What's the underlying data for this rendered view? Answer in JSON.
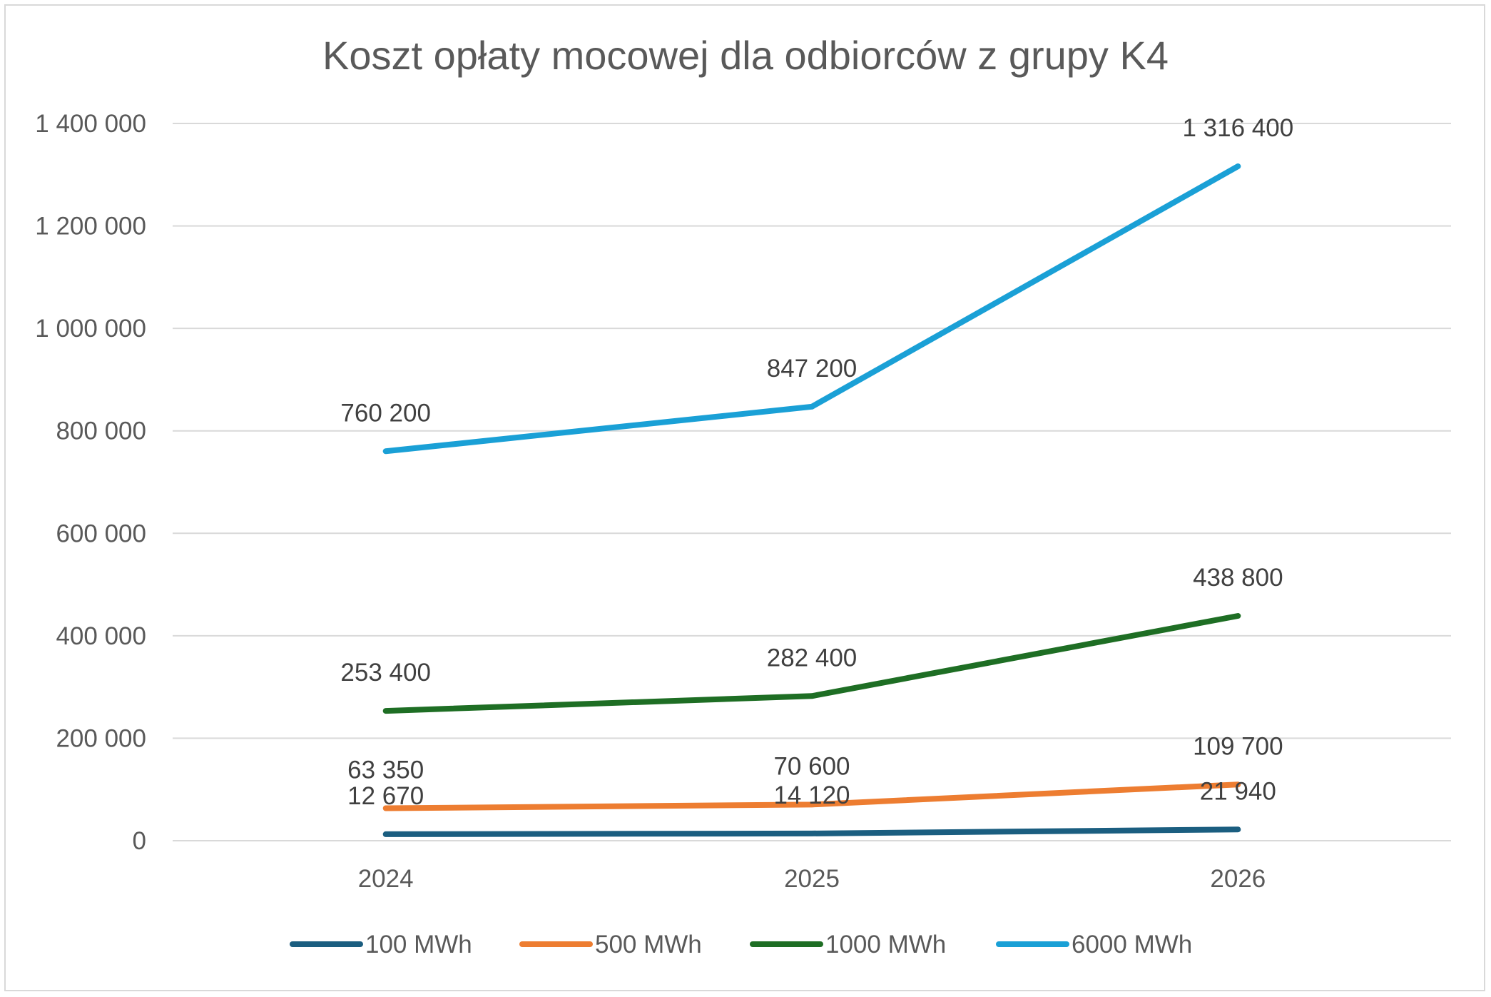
{
  "chart_data": {
    "type": "line",
    "title": "Koszt opłaty mocowej dla odbiorców z grupy K4",
    "xlabel": "",
    "ylabel": "",
    "categories": [
      "2024",
      "2025",
      "2026"
    ],
    "ylim": [
      0,
      1400000
    ],
    "yticks": [
      {
        "value": 0,
        "label": "0"
      },
      {
        "value": 200000,
        "label": "200 000"
      },
      {
        "value": 400000,
        "label": "400 000"
      },
      {
        "value": 600000,
        "label": "600 000"
      },
      {
        "value": 800000,
        "label": "800 000"
      },
      {
        "value": 1000000,
        "label": "1 000 000"
      },
      {
        "value": 1200000,
        "label": "1 200 000"
      },
      {
        "value": 1400000,
        "label": "1 400 000"
      }
    ],
    "grid": true,
    "legend_position": "bottom",
    "series": [
      {
        "name": "100 MWh",
        "color": "#1b5e80",
        "values": [
          12670,
          14120,
          21940
        ],
        "labels": [
          "12 670",
          "14 120",
          "21 940"
        ]
      },
      {
        "name": "500 MWh",
        "color": "#ed7d31",
        "values": [
          63350,
          70600,
          109700
        ],
        "labels": [
          "63 350",
          "70 600",
          "109 700"
        ]
      },
      {
        "name": "1000 MWh",
        "color": "#1e6e24",
        "values": [
          253400,
          282400,
          438800
        ],
        "labels": [
          "253 400",
          "282 400",
          "438 800"
        ]
      },
      {
        "name": "6000 MWh",
        "color": "#1aa0d6",
        "values": [
          760200,
          847200,
          1316400
        ],
        "labels": [
          "760 200",
          "847 200",
          "1 316 400"
        ]
      }
    ]
  }
}
